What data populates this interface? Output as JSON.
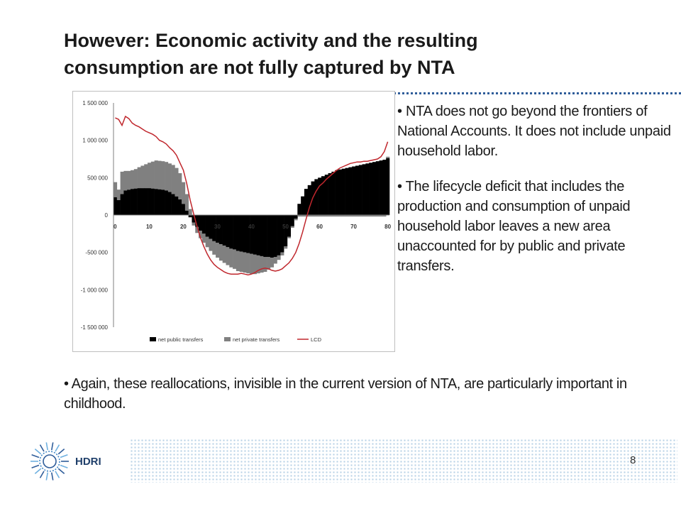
{
  "slide": {
    "title_line1": "However: Economic activity and the resulting",
    "title_line2": "consumption are not fully captured by NTA",
    "bullets_right": [
      "• NTA does not go beyond the frontiers of National Accounts. It does not include unpaid household labor.",
      "• The lifecycle deficit that includes the production and consumption of unpaid household labor leaves a new area unaccounted for by public and private transfers."
    ],
    "bullet_bottom": "• Again, these reallocations, invisible in the current version of NTA, are particularly important in childhood.",
    "logo_text": "HDRI",
    "page_number": "8",
    "colors": {
      "dots": "#2f5d9a",
      "lcd_line": "#c0272d",
      "public": "#000000",
      "private": "#808080"
    }
  },
  "chart_data": {
    "type": "bar",
    "stacked": true,
    "x": [
      0,
      1,
      2,
      3,
      4,
      5,
      6,
      7,
      8,
      9,
      10,
      11,
      12,
      13,
      14,
      15,
      16,
      17,
      18,
      19,
      20,
      21,
      22,
      23,
      24,
      25,
      26,
      27,
      28,
      29,
      30,
      31,
      32,
      33,
      34,
      35,
      36,
      37,
      38,
      39,
      40,
      41,
      42,
      43,
      44,
      45,
      46,
      47,
      48,
      49,
      50,
      51,
      52,
      53,
      54,
      55,
      56,
      57,
      58,
      59,
      60,
      61,
      62,
      63,
      64,
      65,
      66,
      67,
      68,
      69,
      70,
      71,
      72,
      73,
      74,
      75,
      76,
      77,
      78,
      79,
      80
    ],
    "series": [
      {
        "name": "net public transfers",
        "values": [
          240000,
          200000,
          280000,
          330000,
          340000,
          350000,
          355000,
          360000,
          360000,
          360000,
          360000,
          355000,
          350000,
          345000,
          340000,
          330000,
          310000,
          280000,
          250000,
          210000,
          150000,
          60000,
          -30000,
          -100000,
          -160000,
          -210000,
          -250000,
          -290000,
          -320000,
          -350000,
          -370000,
          -390000,
          -410000,
          -430000,
          -450000,
          -460000,
          -480000,
          -490000,
          -500000,
          -510000,
          -520000,
          -530000,
          -540000,
          -550000,
          -560000,
          -560000,
          -570000,
          -560000,
          -540000,
          -500000,
          -420000,
          -290000,
          -150000,
          -50000,
          150000,
          250000,
          350000,
          400000,
          450000,
          480000,
          500000,
          520000,
          540000,
          560000,
          580000,
          600000,
          610000,
          620000,
          630000,
          640000,
          650000,
          660000,
          670000,
          680000,
          690000,
          700000,
          710000,
          720000,
          730000,
          740000,
          760000
        ]
      },
      {
        "name": "net private transfers",
        "values": [
          200000,
          140000,
          300000,
          260000,
          250000,
          250000,
          260000,
          280000,
          300000,
          320000,
          340000,
          360000,
          380000,
          380000,
          380000,
          380000,
          380000,
          390000,
          380000,
          350000,
          290000,
          220000,
          80000,
          -40000,
          -80000,
          -100000,
          -120000,
          -140000,
          -160000,
          -180000,
          -200000,
          -220000,
          -230000,
          -240000,
          -250000,
          -260000,
          -270000,
          -270000,
          -270000,
          -270000,
          -270000,
          -260000,
          -240000,
          -220000,
          -200000,
          -170000,
          -130000,
          -90000,
          -60000,
          -40000,
          -30000,
          -20000,
          -20000,
          -20000,
          -20000,
          -20000,
          -20000,
          -20000,
          -20000,
          -20000,
          -20000,
          -20000,
          -20000,
          -20000,
          -20000,
          -20000,
          -20000,
          -20000,
          -20000,
          -20000,
          -20000,
          -20000,
          -20000,
          -20000,
          -20000,
          -20000,
          -20000,
          -20000,
          -20000,
          -20000,
          20000
        ]
      },
      {
        "name": "LCD",
        "type": "line",
        "values": [
          1300000,
          1280000,
          1200000,
          1320000,
          1290000,
          1230000,
          1200000,
          1180000,
          1150000,
          1120000,
          1100000,
          1080000,
          1050000,
          1000000,
          980000,
          950000,
          900000,
          860000,
          800000,
          700000,
          600000,
          420000,
          200000,
          20000,
          -150000,
          -300000,
          -420000,
          -520000,
          -600000,
          -660000,
          -700000,
          -730000,
          -760000,
          -780000,
          -790000,
          -790000,
          -790000,
          -780000,
          -790000,
          -800000,
          -790000,
          -770000,
          -740000,
          -720000,
          -710000,
          -720000,
          -740000,
          -750000,
          -740000,
          -720000,
          -680000,
          -640000,
          -580000,
          -500000,
          -380000,
          -230000,
          -60000,
          100000,
          230000,
          320000,
          390000,
          430000,
          480000,
          520000,
          560000,
          600000,
          630000,
          650000,
          670000,
          690000,
          700000,
          710000,
          710000,
          720000,
          720000,
          730000,
          740000,
          750000,
          780000,
          850000,
          980000
        ]
      }
    ],
    "y_ticks": [
      "1 500 000",
      "1 000 000",
      "500 000",
      "0",
      "-500 000",
      "-1 000 000",
      "-1 500 000"
    ],
    "x_ticks": [
      "0",
      "10",
      "20",
      "30",
      "40",
      "50",
      "60",
      "70",
      "80"
    ],
    "ylim": [
      -1500000,
      1500000
    ],
    "xlim": [
      0,
      80
    ],
    "legend": [
      "net public transfers",
      "net private transfers",
      "LCD"
    ],
    "legend_position": "bottom",
    "grid": false
  }
}
